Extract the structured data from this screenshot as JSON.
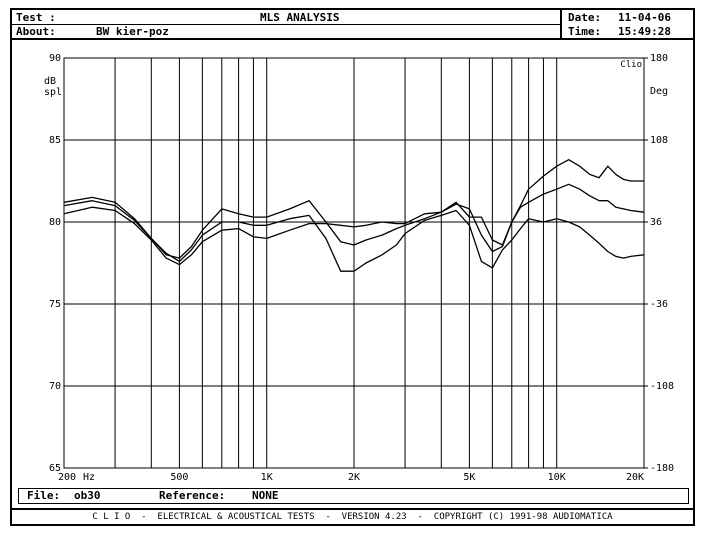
{
  "header": {
    "test_label": "Test :",
    "about_label": "About:",
    "about_value": "BW kier-poz",
    "title": "MLS ANALYSIS",
    "date_label": "Date:",
    "date_value": "11-04-06",
    "time_label": "Time:",
    "time_value": "15:49:28"
  },
  "file_bar": {
    "file_label": "File:",
    "file_value": "ob30",
    "reference_label": "Reference:",
    "reference_value": "NONE"
  },
  "footer": {
    "text": "C L I O  -  ELECTRICAL & ACOUSTICAL TESTS  -  VERSION 4.23  -  COPYRIGHT (C) 1991-98 AUDIOMATICA"
  },
  "chart_data": {
    "type": "line",
    "watermark": "Clio",
    "ylabel": "dB spl",
    "y2label": "Deg",
    "ylim": [
      65,
      90
    ],
    "y2lim": [
      -180,
      180
    ],
    "xlim": [
      200,
      20000
    ],
    "x_scale": "log",
    "grid": true,
    "y_ticks": [
      "90",
      "85",
      "80",
      "75",
      "70",
      "65"
    ],
    "y2_ticks": [
      "180",
      "108",
      "36",
      "-36",
      "-108",
      "-180"
    ],
    "x_tick_labels": [
      {
        "x": 200,
        "label": "200"
      },
      {
        "x": 260,
        "label": "Hz"
      },
      {
        "x": 500,
        "label": "500"
      },
      {
        "x": 1000,
        "label": "1K"
      },
      {
        "x": 2000,
        "label": "2K"
      },
      {
        "x": 5000,
        "label": "5K"
      },
      {
        "x": 10000,
        "label": "10K"
      },
      {
        "x": 20000,
        "label": "20K"
      }
    ],
    "x_grid": [
      300,
      400,
      500,
      600,
      700,
      800,
      900,
      1000,
      2000,
      3000,
      4000,
      5000,
      6000,
      7000,
      8000,
      9000,
      10000
    ],
    "series": [
      {
        "x": [
          200,
          250,
          300,
          350,
          400,
          450,
          500,
          550,
          600,
          700,
          800,
          900,
          1000,
          1200,
          1400,
          1600,
          1800,
          2000,
          2200,
          2500,
          2800,
          3000,
          3500,
          4000,
          4500,
          5000,
          5500,
          6000,
          6500,
          7000,
          7500,
          8000,
          9000,
          10000,
          11000,
          12000,
          13000,
          14000,
          15000,
          16000,
          17000,
          18000,
          20000
        ],
        "y": [
          81.2,
          81.5,
          81.2,
          80.2,
          79.0,
          78.0,
          77.8,
          78.5,
          79.5,
          80.8,
          80.5,
          80.3,
          80.3,
          80.8,
          81.3,
          80.0,
          78.8,
          78.6,
          78.9,
          79.2,
          79.6,
          79.8,
          80.2,
          80.6,
          81.1,
          80.8,
          79.2,
          78.2,
          78.5,
          80.0,
          80.9,
          81.2,
          81.7,
          82.0,
          82.3,
          82.0,
          81.6,
          81.3,
          81.3,
          80.9,
          80.8,
          80.7,
          80.6
        ]
      },
      {
        "x": [
          200,
          250,
          300,
          350,
          400,
          450,
          500,
          550,
          600,
          700,
          800,
          900,
          1000,
          1200,
          1400,
          1600,
          1800,
          2000,
          2200,
          2500,
          2800,
          3000,
          3500,
          4000,
          4500,
          5000,
          5500,
          6000,
          6500,
          7000,
          7500,
          8000,
          9000,
          10000,
          11000,
          12000,
          13000,
          14000,
          15000,
          16000,
          17000,
          18000,
          20000
        ],
        "y": [
          81.0,
          81.3,
          81.0,
          80.1,
          79.0,
          78.1,
          77.6,
          78.3,
          79.2,
          80.0,
          80.0,
          79.8,
          79.8,
          80.2,
          80.4,
          79.0,
          77.0,
          77.0,
          77.5,
          78.0,
          78.6,
          79.3,
          80.1,
          80.4,
          80.7,
          79.8,
          77.6,
          77.2,
          78.3,
          78.9,
          79.6,
          80.2,
          80.0,
          80.2,
          80.0,
          79.7,
          79.2,
          78.7,
          78.2,
          77.9,
          77.8,
          77.9,
          78.0
        ]
      },
      {
        "x": [
          200,
          250,
          300,
          350,
          400,
          450,
          500,
          550,
          600,
          700,
          800,
          900,
          1000,
          1200,
          1400,
          1600,
          1800,
          2000,
          2200,
          2500,
          2800,
          3000,
          3500,
          4000,
          4500,
          5000,
          5500,
          6000,
          6500,
          7000,
          7500,
          8000,
          9000,
          10000,
          11000,
          12000,
          13000,
          14000,
          15000,
          16000,
          17000,
          18000,
          20000
        ],
        "y": [
          80.5,
          80.9,
          80.7,
          79.9,
          78.9,
          77.8,
          77.4,
          78.0,
          78.8,
          79.5,
          79.6,
          79.1,
          79.0,
          79.5,
          79.9,
          79.9,
          79.8,
          79.7,
          79.8,
          80.0,
          79.9,
          79.9,
          80.5,
          80.6,
          81.2,
          80.3,
          80.3,
          78.9,
          78.6,
          80.0,
          81.0,
          82.0,
          82.8,
          83.4,
          83.8,
          83.4,
          82.9,
          82.7,
          83.4,
          82.9,
          82.6,
          82.5,
          82.5
        ]
      }
    ]
  }
}
